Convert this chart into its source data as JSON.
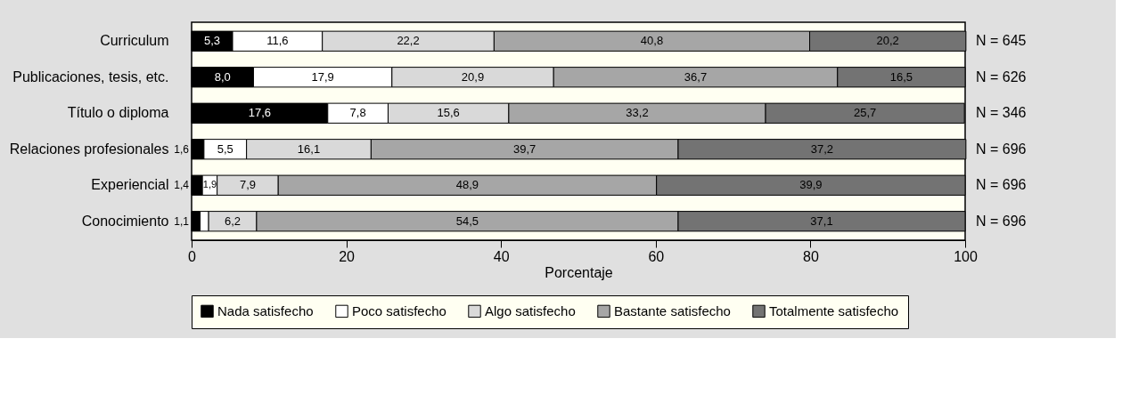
{
  "chart_data": {
    "type": "bar",
    "orientation": "horizontal",
    "stacked": true,
    "categories": [
      "Curriculum",
      "Publicaciones, tesis, etc.",
      "Título o diploma",
      "Relaciones profesionales",
      "Experiencial",
      "Conocimiento"
    ],
    "series": [
      {
        "name": "Nada satisfecho",
        "color": "#000000",
        "values": [
          5.3,
          8.0,
          17.6,
          1.6,
          1.4,
          1.1
        ],
        "value_labels": [
          "5,3",
          "8,0",
          "17,6",
          "1,6",
          "1,4",
          "1,1"
        ]
      },
      {
        "name": "Poco satisfecho",
        "color": "#ffffff",
        "values": [
          11.6,
          17.9,
          7.8,
          5.5,
          1.9,
          1.1
        ],
        "value_labels": [
          "11,6",
          "17,9",
          "7,8",
          "5,5",
          "1,9",
          null
        ]
      },
      {
        "name": "Algo satisfecho",
        "color": "#d9d9d9",
        "values": [
          22.2,
          20.9,
          15.6,
          16.1,
          7.9,
          6.2
        ],
        "value_labels": [
          "22,2",
          "20,9",
          "15,6",
          "16,1",
          "7,9",
          "6,2"
        ]
      },
      {
        "name": "Bastante satisfecho",
        "color": "#a6a6a6",
        "values": [
          40.8,
          36.7,
          33.2,
          39.7,
          48.9,
          54.5
        ],
        "value_labels": [
          "40,8",
          "36,7",
          "33,2",
          "39,7",
          "48,9",
          "54,5"
        ]
      },
      {
        "name": "Totalmente satisfecho",
        "color": "#737373",
        "values": [
          20.2,
          16.5,
          25.7,
          37.2,
          39.9,
          37.1
        ],
        "value_labels": [
          "20,2",
          "16,5",
          "25,7",
          "37,2",
          "39,9",
          "37,1"
        ]
      }
    ],
    "xlabel": "Porcentaje",
    "xlim": [
      0,
      100
    ],
    "xticks": [
      0,
      20,
      40,
      60,
      80,
      100
    ],
    "annotations": [
      "N = 645",
      "N = 626",
      "N = 346",
      "N = 696",
      "N = 696",
      "N = 696"
    ],
    "grid": false,
    "legend": "bottom"
  }
}
